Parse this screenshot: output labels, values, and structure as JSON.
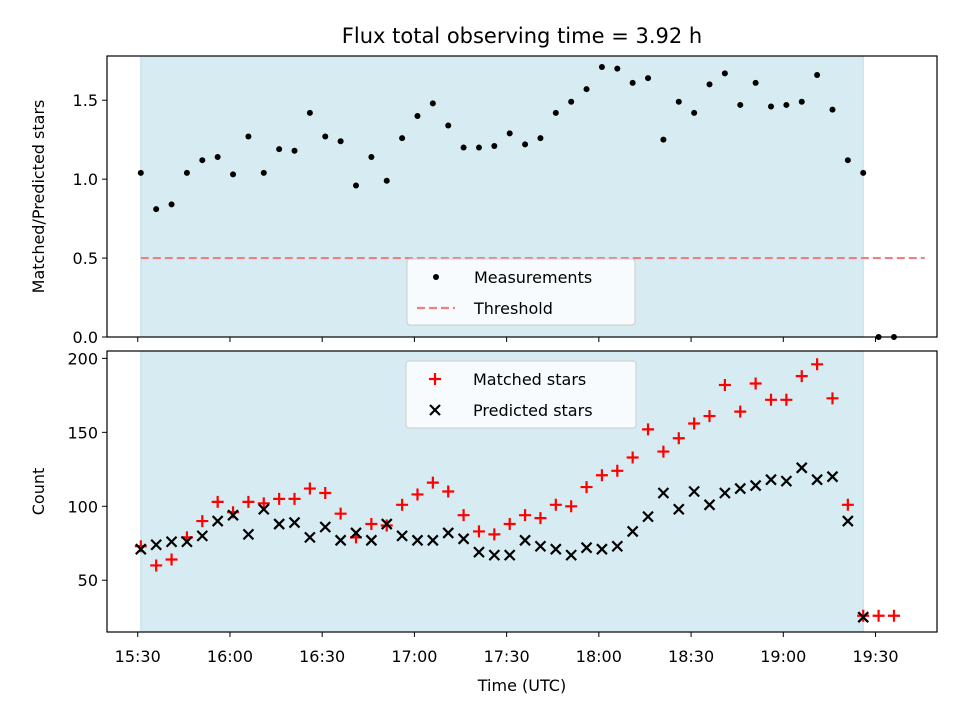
{
  "chart_data": [
    {
      "type": "scatter",
      "title": "Flux total observing time = 3.92 h",
      "xlabel": "",
      "ylabel": "Matched/Predicted stars",
      "ylim": [
        0.0,
        1.78
      ],
      "xlim_minutes": [
        920,
        1190
      ],
      "yticks": [
        "0.0",
        "0.5",
        "1.0",
        "1.5"
      ],
      "xtick_labels": [
        "15:30",
        "16:00",
        "16:30",
        "17:00",
        "17:30",
        "18:00",
        "18:30",
        "19:00",
        "19:30"
      ],
      "xtick_minutes": [
        930,
        960,
        990,
        1020,
        1050,
        1080,
        1110,
        1140,
        1170
      ],
      "observing_window_minutes": [
        931,
        1166
      ],
      "threshold": {
        "label": "Threshold",
        "value": 0.5,
        "x_range_minutes": [
          931,
          1186
        ],
        "color": "#f08080"
      },
      "legend": [
        "Measurements",
        "Threshold"
      ],
      "legend_position": "lower-center",
      "series": [
        {
          "name": "Measurements",
          "color": "#000000",
          "x": [
            931,
            936,
            941,
            946,
            951,
            956,
            961,
            966,
            971,
            976,
            981,
            986,
            991,
            996,
            1001,
            1006,
            1011,
            1016,
            1021,
            1026,
            1031,
            1036,
            1041,
            1046,
            1051,
            1056,
            1061,
            1066,
            1071,
            1076,
            1081,
            1086,
            1091,
            1096,
            1101,
            1106,
            1111,
            1116,
            1121,
            1126,
            1131,
            1136,
            1141,
            1146,
            1151,
            1156,
            1161,
            1166,
            1171,
            1176
          ],
          "values": [
            1.04,
            0.81,
            0.84,
            1.04,
            1.12,
            1.14,
            1.03,
            1.27,
            1.04,
            1.19,
            1.18,
            1.42,
            1.27,
            1.24,
            0.96,
            1.14,
            0.99,
            1.26,
            1.4,
            1.48,
            1.34,
            1.2,
            1.2,
            1.21,
            1.29,
            1.22,
            1.26,
            1.42,
            1.49,
            1.57,
            1.71,
            1.7,
            1.61,
            1.64,
            1.25,
            1.49,
            1.42,
            1.6,
            1.67,
            1.47,
            1.61,
            1.46,
            1.47,
            1.49,
            1.66,
            1.44,
            1.12,
            1.04,
            0.0,
            0.0
          ]
        }
      ]
    },
    {
      "type": "scatter",
      "title": "",
      "xlabel": "Time (UTC)",
      "ylabel": "Count",
      "ylim": [
        15,
        205
      ],
      "xlim_minutes": [
        920,
        1190
      ],
      "yticks": [
        "50",
        "100",
        "150",
        "200"
      ],
      "xtick_labels": [
        "15:30",
        "16:00",
        "16:30",
        "17:00",
        "17:30",
        "18:00",
        "18:30",
        "19:00",
        "19:30"
      ],
      "xtick_minutes": [
        930,
        960,
        990,
        1020,
        1050,
        1080,
        1110,
        1140,
        1170
      ],
      "observing_window_minutes": [
        931,
        1166
      ],
      "legend": [
        "Matched stars",
        "Predicted stars"
      ],
      "legend_position": "upper-center",
      "series": [
        {
          "name": "Matched stars",
          "color": "#ff0000",
          "x": [
            931,
            936,
            941,
            946,
            951,
            956,
            961,
            966,
            971,
            976,
            981,
            986,
            991,
            996,
            1001,
            1006,
            1011,
            1016,
            1021,
            1026,
            1031,
            1036,
            1041,
            1046,
            1051,
            1056,
            1061,
            1066,
            1071,
            1076,
            1081,
            1086,
            1091,
            1096,
            1101,
            1106,
            1111,
            1116,
            1121,
            1126,
            1131,
            1136,
            1141,
            1146,
            1151,
            1156,
            1161,
            1166,
            1171,
            1176
          ],
          "values": [
            73,
            60,
            64,
            79,
            90,
            103,
            96,
            103,
            102,
            105,
            105,
            112,
            109,
            95,
            79,
            88,
            87,
            101,
            108,
            116,
            110,
            94,
            83,
            81,
            88,
            94,
            92,
            101,
            100,
            113,
            121,
            124,
            133,
            152,
            137,
            146,
            156,
            161,
            182,
            164,
            183,
            172,
            172,
            188,
            196,
            173,
            101,
            26,
            26,
            26
          ]
        },
        {
          "name": "Predicted stars",
          "color": "#000000",
          "x": [
            931,
            936,
            941,
            946,
            951,
            956,
            961,
            966,
            971,
            976,
            981,
            986,
            991,
            996,
            1001,
            1006,
            1011,
            1016,
            1021,
            1026,
            1031,
            1036,
            1041,
            1046,
            1051,
            1056,
            1061,
            1066,
            1071,
            1076,
            1081,
            1086,
            1091,
            1096,
            1101,
            1106,
            1111,
            1116,
            1121,
            1126,
            1131,
            1136,
            1141,
            1146,
            1151,
            1156,
            1161,
            1166
          ],
          "values": [
            71,
            74,
            76,
            76,
            80,
            90,
            94,
            81,
            98,
            88,
            89,
            79,
            86,
            77,
            82,
            77,
            88,
            80,
            77,
            77,
            82,
            78,
            69,
            67,
            67,
            77,
            73,
            71,
            67,
            72,
            71,
            73,
            83,
            93,
            109,
            98,
            110,
            101,
            109,
            112,
            114,
            118,
            117,
            126,
            118,
            120,
            90,
            25
          ]
        }
      ]
    }
  ]
}
